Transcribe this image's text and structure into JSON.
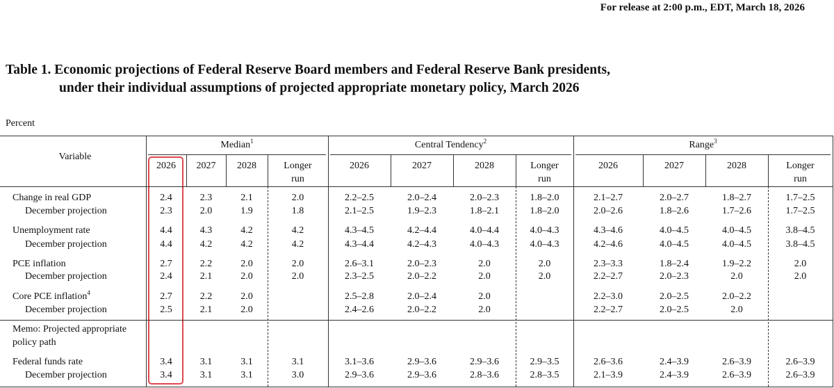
{
  "header": {
    "release": "For release at 2:00 p.m., EDT, March 18, 2026"
  },
  "title": {
    "lines": [
      "Table 1. Economic projections of Federal Reserve Board members and Federal Reserve Bank presidents,",
      "under their individual assumptions of projected appropriate monetary policy, March 2026"
    ]
  },
  "unit": "Percent",
  "table": {
    "variable_header": "Variable",
    "groups": [
      {
        "name": "Median",
        "note": "1"
      },
      {
        "name": "Central Tendency",
        "note": "2"
      },
      {
        "name": "Range",
        "note": "3"
      }
    ],
    "columns": [
      "2026",
      "2027",
      "2028",
      "Longer run"
    ],
    "memo": "Memo: Projected appropriate policy path",
    "rows": [
      {
        "label": "Change in real GDP",
        "values": [
          "2.4",
          "2.3",
          "2.1",
          "2.0",
          "2.2–2.5",
          "2.0–2.4",
          "2.0–2.3",
          "1.8–2.0",
          "2.1–2.7",
          "2.0–2.7",
          "1.8–2.7",
          "1.7–2.5"
        ]
      },
      {
        "label": "December projection",
        "values": [
          "2.3",
          "2.0",
          "1.9",
          "1.8",
          "2.1–2.5",
          "1.9–2.3",
          "1.8–2.1",
          "1.8–2.0",
          "2.0–2.6",
          "1.8–2.6",
          "1.7–2.6",
          "1.7–2.5"
        ]
      },
      {
        "label": "Unemployment rate",
        "values": [
          "4.4",
          "4.3",
          "4.2",
          "4.2",
          "4.3–4.5",
          "4.2–4.4",
          "4.0–4.4",
          "4.0–4.3",
          "4.3–4.6",
          "4.0–4.5",
          "4.0–4.5",
          "3.8–4.5"
        ]
      },
      {
        "label": "December projection",
        "values": [
          "4.4",
          "4.2",
          "4.2",
          "4.2",
          "4.3–4.4",
          "4.2–4.3",
          "4.0–4.3",
          "4.0–4.3",
          "4.2–4.6",
          "4.0–4.5",
          "4.0–4.5",
          "3.8–4.5"
        ]
      },
      {
        "label": "PCE inflation",
        "values": [
          "2.7",
          "2.2",
          "2.0",
          "2.0",
          "2.6–3.1",
          "2.0–2.3",
          "2.0",
          "2.0",
          "2.3–3.3",
          "1.8–2.4",
          "1.9–2.2",
          "2.0"
        ]
      },
      {
        "label": "December projection",
        "values": [
          "2.4",
          "2.1",
          "2.0",
          "2.0",
          "2.3–2.5",
          "2.0–2.2",
          "2.0",
          "2.0",
          "2.2–2.7",
          "2.0–2.3",
          "2.0",
          "2.0"
        ]
      },
      {
        "label": "Core PCE inflation",
        "note": "4",
        "values": [
          "2.7",
          "2.2",
          "2.0",
          null,
          "2.5–2.8",
          "2.0–2.4",
          "2.0",
          null,
          "2.2–3.0",
          "2.0–2.5",
          "2.0–2.2",
          null
        ]
      },
      {
        "label": "December projection",
        "values": [
          "2.5",
          "2.1",
          "2.0",
          null,
          "2.4–2.6",
          "2.0–2.2",
          "2.0",
          null,
          "2.2–2.7",
          "2.0–2.5",
          "2.0",
          null
        ]
      },
      {
        "label": "Federal funds rate",
        "values": [
          "3.4",
          "3.1",
          "3.1",
          "3.1",
          "3.1–3.6",
          "2.9–3.6",
          "2.9–3.6",
          "2.9–3.5",
          "2.6–3.6",
          "2.4–3.9",
          "2.6–3.9",
          "2.6–3.9"
        ]
      },
      {
        "label": "December projection",
        "values": [
          "3.4",
          "3.1",
          "3.1",
          "3.0",
          "2.9–3.6",
          "2.9–3.6",
          "2.8–3.6",
          "2.8–3.5",
          "2.1–3.9",
          "2.4–3.9",
          "2.6–3.9",
          "2.6–3.9"
        ]
      }
    ]
  }
}
